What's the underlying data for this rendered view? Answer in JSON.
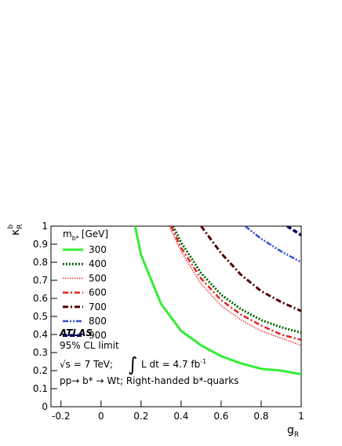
{
  "chart_data": {
    "type": "line",
    "x_label": {
      "symbol": "g",
      "subscript": "R"
    },
    "y_label": {
      "symbol": "κ",
      "subscript": "R",
      "superscript": "b"
    },
    "legend_title": {
      "symbol": "m",
      "subscript": "b*",
      "unit": "[GeV]"
    },
    "annotations": {
      "experiment": "ATLAS",
      "limit": "95% CL limit",
      "energy": "√s = 7 TeV;",
      "integral": "∫",
      "lumi": "L dt = 4.7 fb",
      "lumi_exp": "-1",
      "process": "pp→ b* → Wt; Right-handed b*-quarks"
    },
    "xlim": [
      -0.25,
      1
    ],
    "ylim": [
      0,
      1
    ],
    "xticks": [
      -0.2,
      0,
      0.2,
      0.4,
      0.6,
      0.8,
      1
    ],
    "yticks": [
      0,
      0.1,
      0.2,
      0.3,
      0.4,
      0.5,
      0.6,
      0.7,
      0.8,
      0.9,
      1
    ],
    "series": [
      {
        "name": "300",
        "color": "#33ee33",
        "linestyle": "solid",
        "width": 3,
        "x": [
          0.17,
          0.2,
          0.3,
          0.4,
          0.5,
          0.6,
          0.7,
          0.8,
          0.9,
          1
        ],
        "values": [
          1,
          0.84,
          0.57,
          0.42,
          0.34,
          0.28,
          0.24,
          0.21,
          0.2,
          0.18
        ]
      },
      {
        "name": "400",
        "color": "#006600",
        "linestyle": "dotted",
        "width": 3,
        "x": [
          0.36,
          0.4,
          0.5,
          0.6,
          0.7,
          0.8,
          0.9,
          1
        ],
        "values": [
          1,
          0.91,
          0.74,
          0.62,
          0.54,
          0.48,
          0.44,
          0.41
        ]
      },
      {
        "name": "500",
        "color": "#ee3333",
        "linestyle": "fine-dotted",
        "width": 1.5,
        "x": [
          0.34,
          0.4,
          0.5,
          0.6,
          0.7,
          0.8,
          0.9,
          1
        ],
        "values": [
          1,
          0.86,
          0.68,
          0.56,
          0.48,
          0.42,
          0.38,
          0.34
        ]
      },
      {
        "name": "600",
        "color": "#dd2222",
        "linestyle": "dash-dot",
        "width": 2.5,
        "x": [
          0.35,
          0.4,
          0.5,
          0.6,
          0.7,
          0.8,
          0.9,
          1
        ],
        "values": [
          1,
          0.88,
          0.71,
          0.59,
          0.51,
          0.45,
          0.4,
          0.37
        ]
      },
      {
        "name": "700",
        "color": "#550000",
        "linestyle": "dash-dot",
        "width": 3,
        "x": [
          0.5,
          0.6,
          0.7,
          0.8,
          0.9,
          1
        ],
        "values": [
          1,
          0.85,
          0.73,
          0.64,
          0.58,
          0.53
        ]
      },
      {
        "name": "800",
        "color": "#3355cc",
        "linestyle": "dash-dot-dot",
        "width": 2.5,
        "x": [
          0.72,
          0.8,
          0.9,
          1
        ],
        "values": [
          1,
          0.93,
          0.86,
          0.8
        ]
      },
      {
        "name": "900",
        "color": "#000066",
        "linestyle": "dashed",
        "width": 3.5,
        "x": [
          0.93,
          1
        ],
        "values": [
          1,
          0.95
        ]
      }
    ]
  }
}
